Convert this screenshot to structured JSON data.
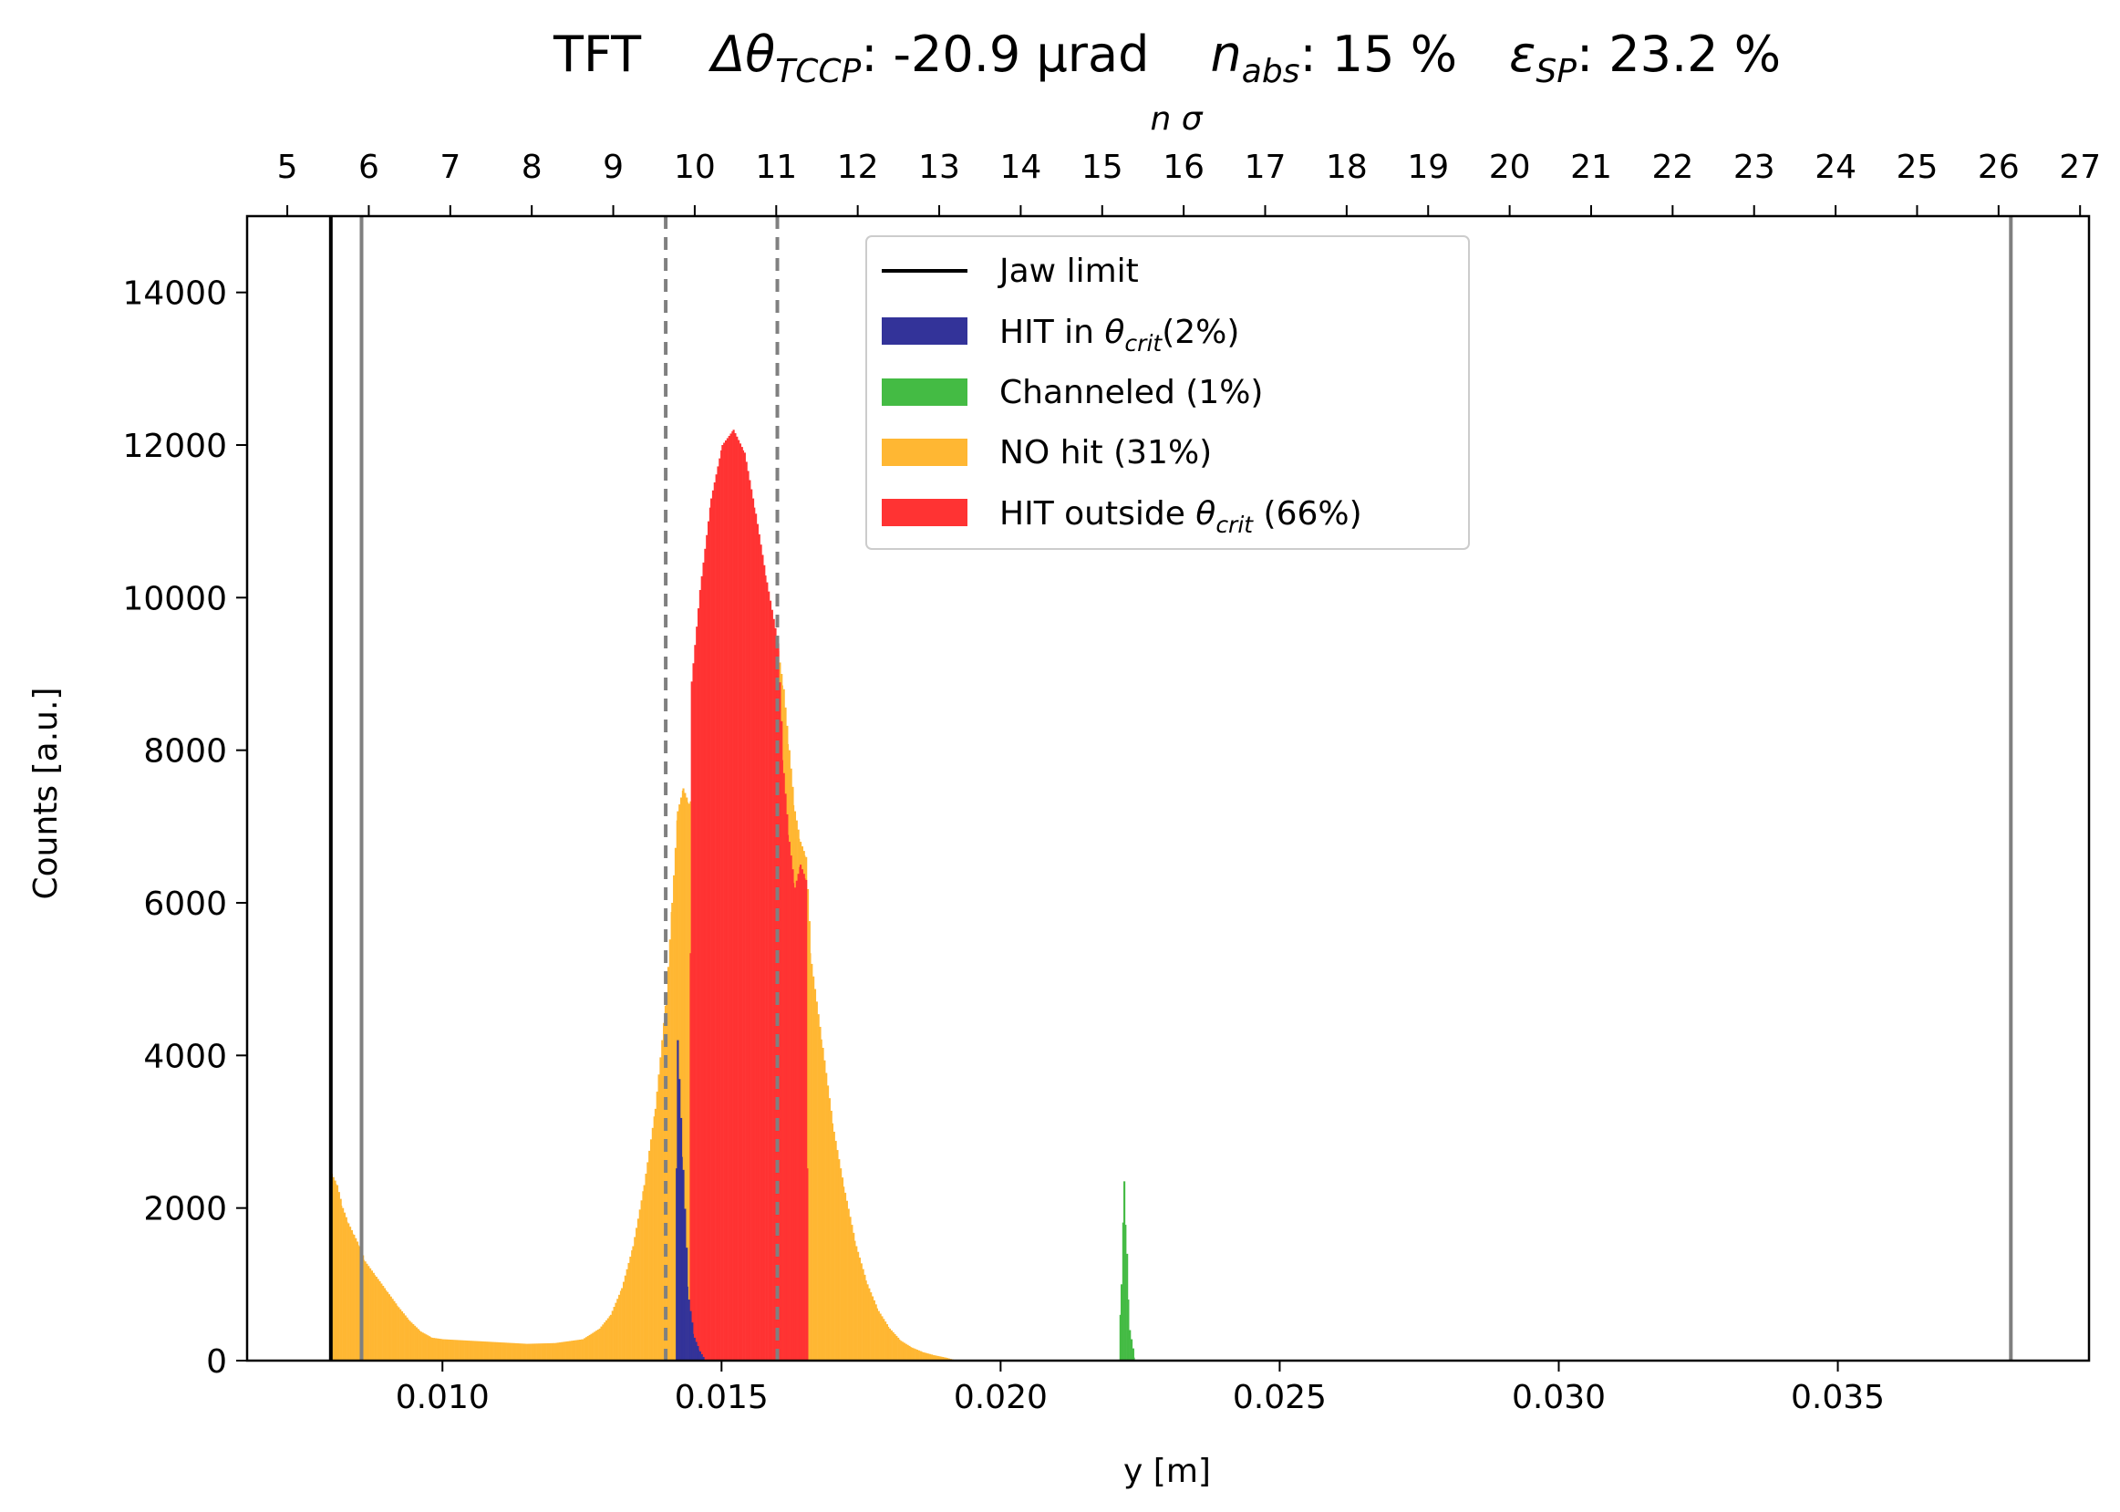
{
  "chart_data": {
    "type": "histogram",
    "title": {
      "prefix": "TFT",
      "delta": "Δθ",
      "delta_sub": "TCCP",
      "delta_value": ": -20.9 μrad",
      "nabs": "n",
      "nabs_sub": "abs",
      "nabs_value": ": 15 %",
      "eps": "ε",
      "eps_sub": "SP",
      "eps_value": ": 23.2 %"
    },
    "xlabel": "y [m]",
    "ylabel": "Counts [a.u.]",
    "top_axis_label": "n σ",
    "xlim": [
      0.0065,
      0.0395
    ],
    "ylim": [
      0,
      15000
    ],
    "xticks": [
      0.01,
      0.015,
      0.02,
      0.025,
      0.03,
      0.035
    ],
    "xtick_labels": [
      "0.010",
      "0.015",
      "0.020",
      "0.025",
      "0.030",
      "0.035"
    ],
    "yticks": [
      0,
      2000,
      4000,
      6000,
      8000,
      10000,
      12000,
      14000
    ],
    "ytick_labels": [
      "0",
      "2000",
      "4000",
      "6000",
      "8000",
      "10000",
      "12000",
      "14000"
    ],
    "top_ticks_y_m": [
      0.00722,
      0.00868,
      0.01014,
      0.0116,
      0.01306,
      0.01452,
      0.01598,
      0.01744,
      0.0189,
      0.02036,
      0.02182,
      0.02328,
      0.02474,
      0.0262,
      0.02766,
      0.02912,
      0.03058,
      0.03204,
      0.0335,
      0.03496,
      0.03642,
      0.03788,
      0.03934
    ],
    "top_tick_labels": [
      "5",
      "6",
      "7",
      "8",
      "9",
      "10",
      "11",
      "12",
      "13",
      "14",
      "15",
      "16",
      "17",
      "18",
      "19",
      "20",
      "21",
      "22",
      "23",
      "24",
      "25",
      "26",
      "27"
    ],
    "vertical_lines": [
      {
        "x": 0.008,
        "color": "#000000",
        "style": "solid"
      },
      {
        "x": 0.00855,
        "color": "#808080",
        "style": "solid"
      },
      {
        "x": 0.014,
        "color": "#808080",
        "style": "dashed"
      },
      {
        "x": 0.016,
        "color": "#808080",
        "style": "dashed"
      },
      {
        "x": 0.0381,
        "color": "#808080",
        "style": "solid"
      }
    ],
    "series": [
      {
        "name": "NO hit (31%)",
        "color": "#ffb733",
        "points": [
          [
            0.008,
            2450
          ],
          [
            0.0081,
            2300
          ],
          [
            0.0082,
            2000
          ],
          [
            0.0083,
            1800
          ],
          [
            0.0084,
            1650
          ],
          [
            0.0085,
            1500
          ],
          [
            0.0086,
            1300
          ],
          [
            0.0088,
            1100
          ],
          [
            0.009,
            900
          ],
          [
            0.0092,
            700
          ],
          [
            0.0094,
            520
          ],
          [
            0.0096,
            380
          ],
          [
            0.0098,
            300
          ],
          [
            0.01,
            280
          ],
          [
            0.0105,
            260
          ],
          [
            0.011,
            240
          ],
          [
            0.0115,
            220
          ],
          [
            0.012,
            230
          ],
          [
            0.0125,
            280
          ],
          [
            0.0128,
            420
          ],
          [
            0.013,
            600
          ],
          [
            0.0132,
            950
          ],
          [
            0.0134,
            1500
          ],
          [
            0.0136,
            2300
          ],
          [
            0.0138,
            3300
          ],
          [
            0.014,
            4800
          ],
          [
            0.0141,
            6000
          ],
          [
            0.0142,
            7200
          ],
          [
            0.0143,
            7500
          ],
          [
            0.0144,
            7300
          ],
          [
            0.0145,
            7400
          ],
          [
            0.016,
            9300
          ],
          [
            0.0161,
            8800
          ],
          [
            0.0162,
            8000
          ],
          [
            0.0163,
            7200
          ],
          [
            0.0164,
            6800
          ],
          [
            0.0165,
            6600
          ],
          [
            0.0166,
            5200
          ],
          [
            0.0168,
            4100
          ],
          [
            0.017,
            3000
          ],
          [
            0.0172,
            2200
          ],
          [
            0.0174,
            1500
          ],
          [
            0.0176,
            1000
          ],
          [
            0.0178,
            650
          ],
          [
            0.018,
            420
          ],
          [
            0.0182,
            260
          ],
          [
            0.0184,
            170
          ],
          [
            0.0186,
            110
          ],
          [
            0.0188,
            70
          ],
          [
            0.019,
            40
          ],
          [
            0.0192,
            0
          ]
        ]
      },
      {
        "name": "HIT outside θcrit (66%)",
        "color": "#ff3333",
        "points": [
          [
            0.0144,
            0
          ],
          [
            0.01445,
            8900
          ],
          [
            0.0146,
            10100
          ],
          [
            0.0148,
            11300
          ],
          [
            0.015,
            12000
          ],
          [
            0.0152,
            12200
          ],
          [
            0.0154,
            11900
          ],
          [
            0.0156,
            11100
          ],
          [
            0.0158,
            10200
          ],
          [
            0.016,
            9400
          ],
          [
            0.0161,
            7700
          ],
          [
            0.0162,
            6800
          ],
          [
            0.0163,
            6200
          ],
          [
            0.0164,
            6500
          ],
          [
            0.0165,
            6300
          ],
          [
            0.01655,
            0
          ]
        ]
      },
      {
        "name": "HIT in θcrit(2%)",
        "color": "#333399",
        "points": [
          [
            0.01415,
            0
          ],
          [
            0.0142,
            4200
          ],
          [
            0.0143,
            2500
          ],
          [
            0.0144,
            800
          ],
          [
            0.0145,
            300
          ],
          [
            0.0146,
            120
          ],
          [
            0.0147,
            0
          ]
        ]
      },
      {
        "name": "Channeled (1%)",
        "color": "#44bb44",
        "points": [
          [
            0.0221,
            0
          ],
          [
            0.02215,
            1000
          ],
          [
            0.0222,
            2350
          ],
          [
            0.02225,
            1400
          ],
          [
            0.0223,
            400
          ],
          [
            0.0224,
            0
          ]
        ]
      }
    ],
    "legend": {
      "placement": "upper-center",
      "entries": [
        {
          "name": "Jaw limit",
          "kind": "line",
          "color": "#000000"
        },
        {
          "name": "HIT in ",
          "theta": "θ",
          "sub": "crit",
          "tail": "(2%)",
          "kind": "patch",
          "color": "#333399"
        },
        {
          "name": "Channeled (1%)",
          "kind": "patch",
          "color": "#44bb44"
        },
        {
          "name": "NO hit (31%)",
          "kind": "patch",
          "color": "#ffb733"
        },
        {
          "name": "HIT outside ",
          "theta": "θ",
          "sub": "crit",
          "tail": " (66%)",
          "kind": "patch",
          "color": "#ff3333"
        }
      ]
    },
    "grid": false
  }
}
